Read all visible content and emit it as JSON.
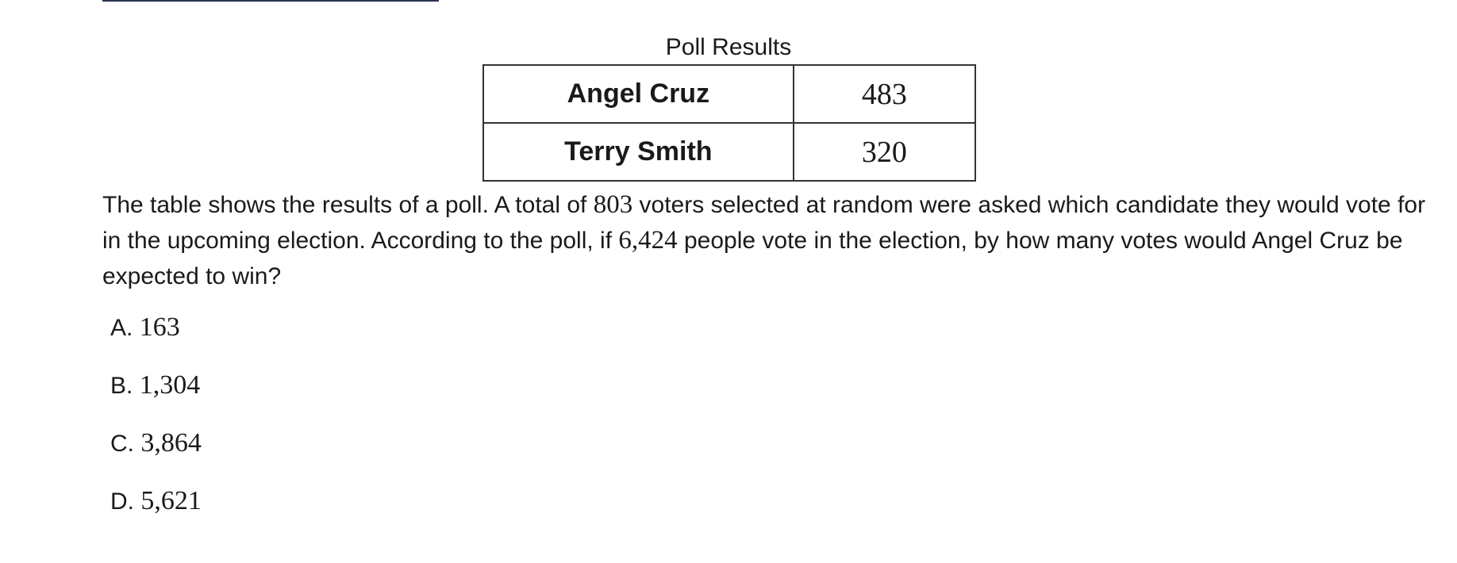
{
  "table": {
    "caption": "Poll Results",
    "rows": [
      {
        "name": "Angel Cruz",
        "votes": "483"
      },
      {
        "name": "Terry Smith",
        "votes": "320"
      }
    ]
  },
  "question": {
    "part1": "The table shows the results of a poll. A total of ",
    "num1": "803",
    "part2": " voters selected at random were asked which candidate they would vote for in the upcoming election. According to the poll, if ",
    "num2": "6,424",
    "part3": " people vote in the election, by how many votes would Angel Cruz be expected to win?"
  },
  "options": [
    {
      "letter": "A.",
      "value": "163"
    },
    {
      "letter": "B.",
      "value": "1,304"
    },
    {
      "letter": "C.",
      "value": "3,864"
    },
    {
      "letter": "D.",
      "value": "5,621"
    }
  ]
}
